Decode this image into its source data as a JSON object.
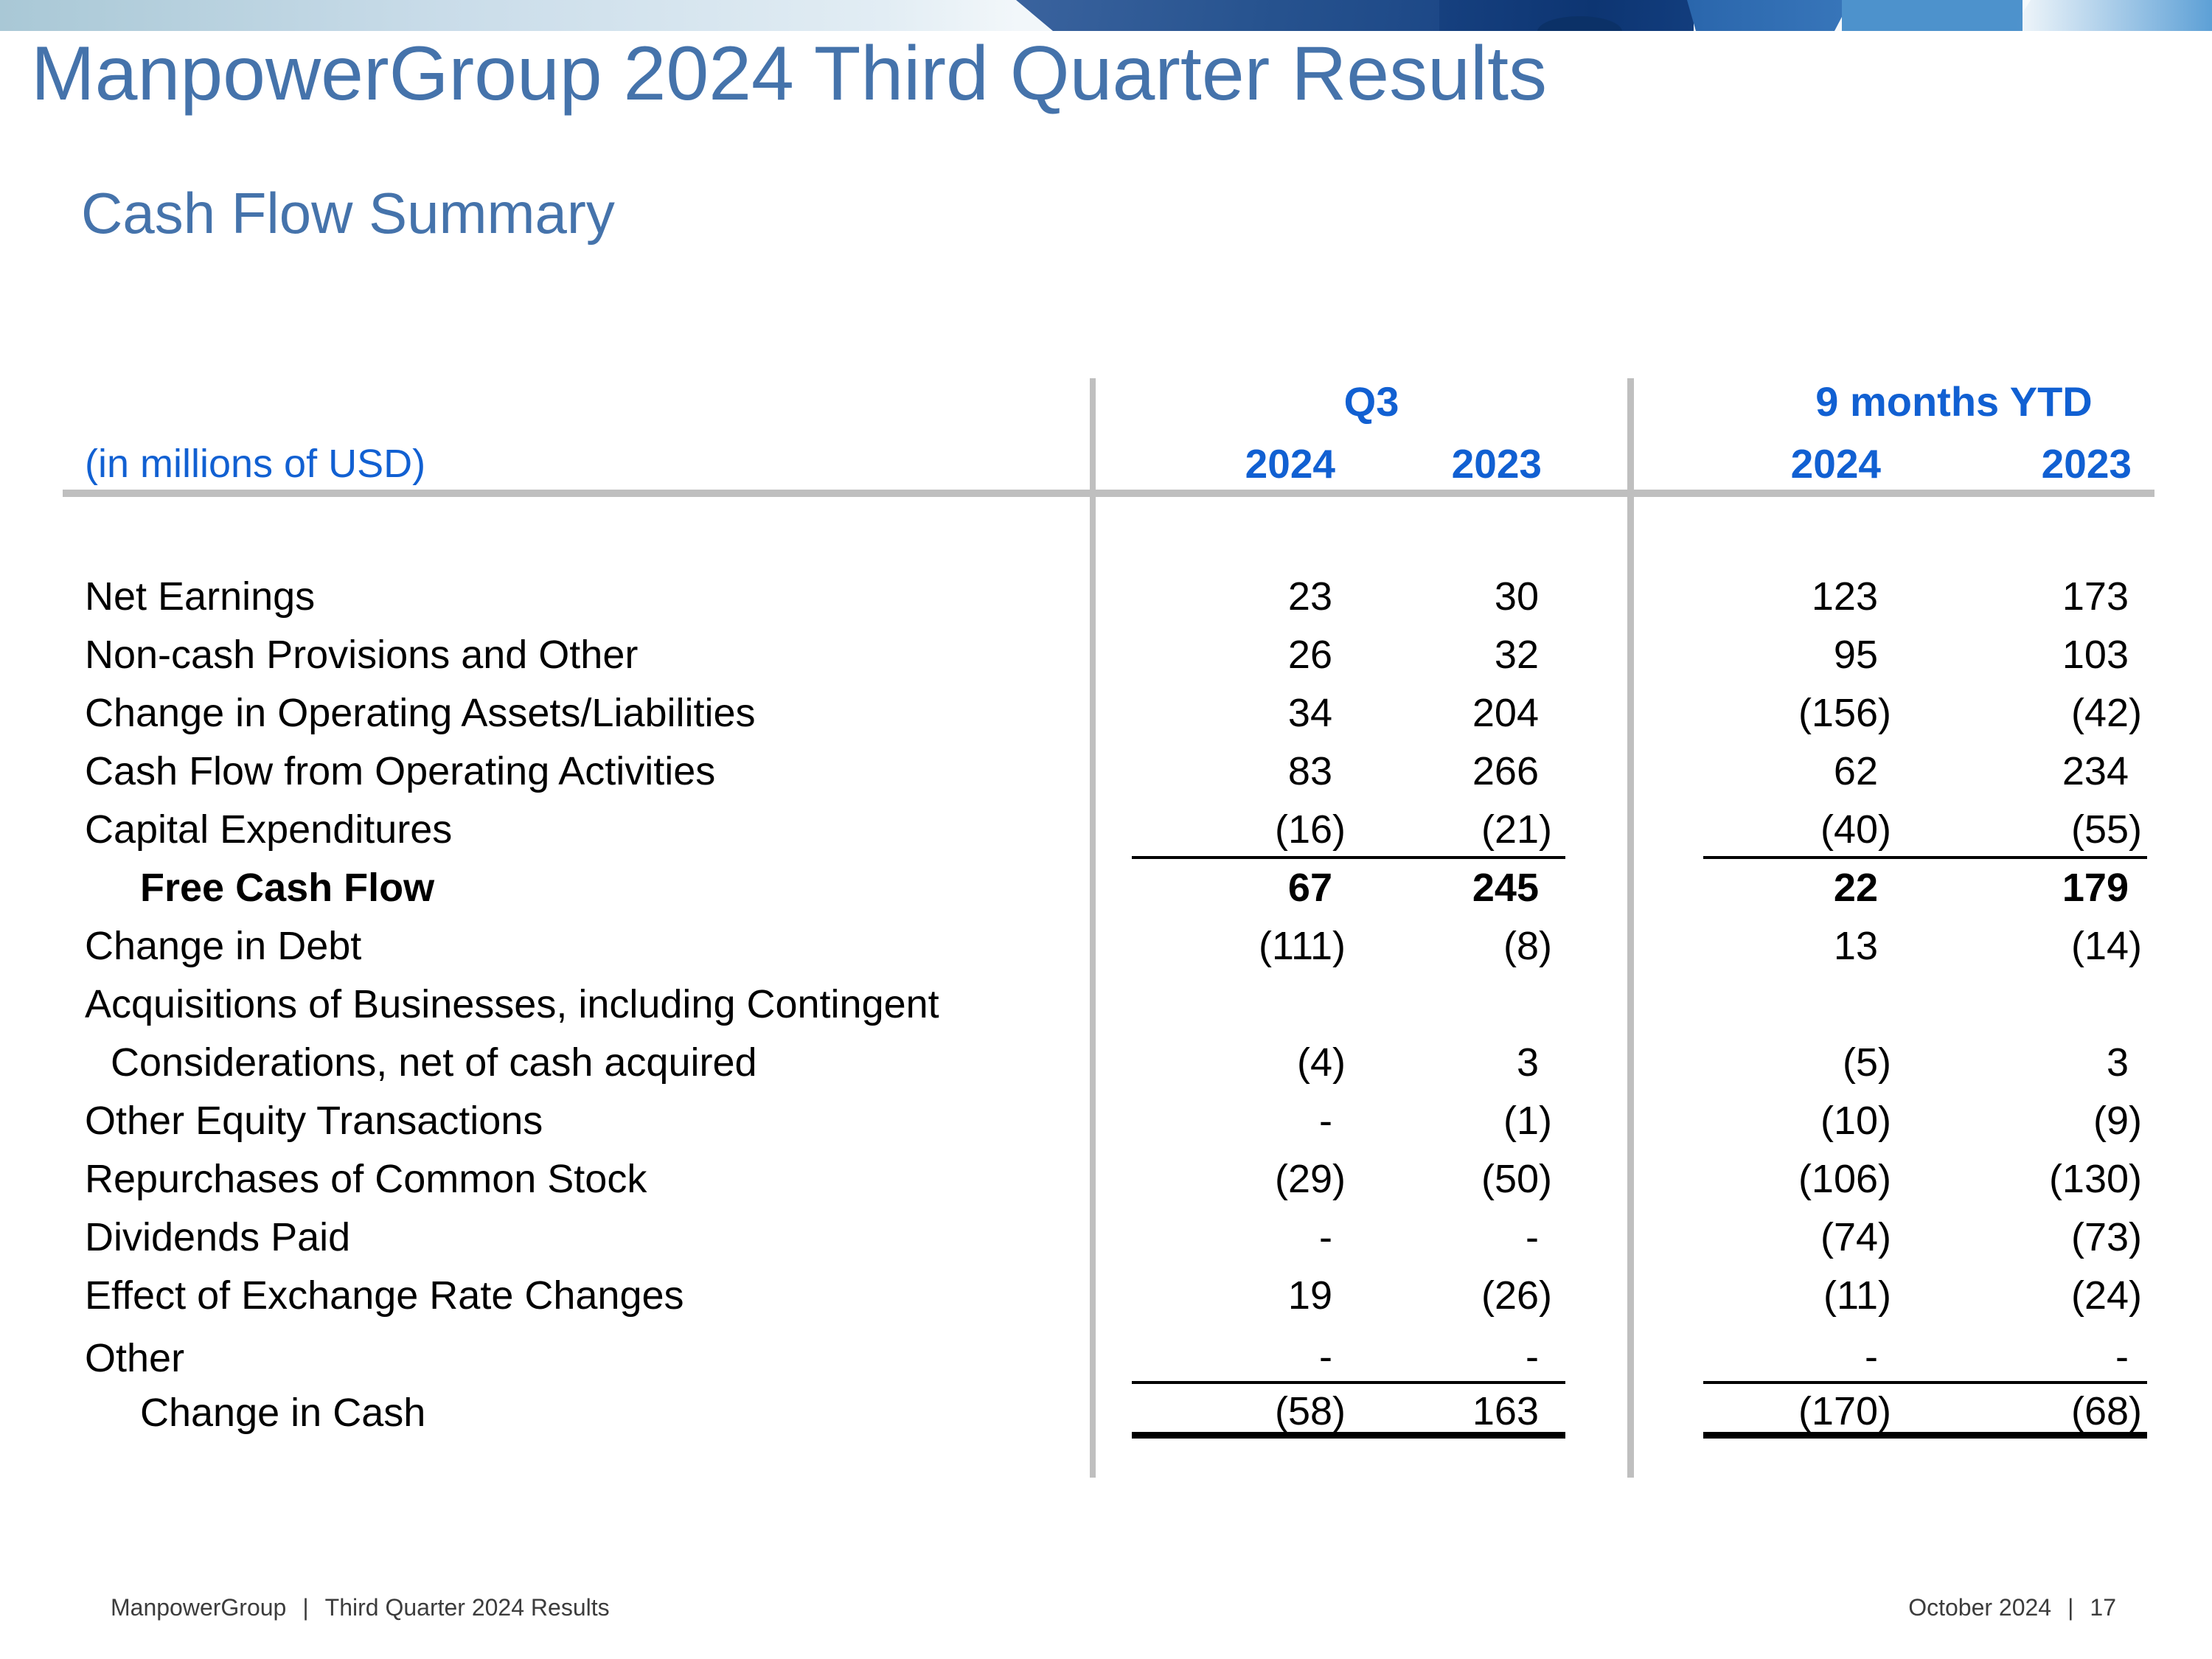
{
  "slide": {
    "title": "ManpowerGroup 2024 Third Quarter Results",
    "subtitle": "Cash Flow Summary"
  },
  "table": {
    "unit_label": "(in millions of USD)",
    "column_groups": [
      {
        "label": "Q3"
      },
      {
        "label": "9 months YTD"
      }
    ],
    "year_headers": [
      "2024",
      "2023",
      "2024",
      "2023"
    ],
    "rows": [
      {
        "label": "Net Earnings",
        "values": [
          "23",
          "30",
          "123",
          "173"
        ]
      },
      {
        "label": "Non-cash Provisions and Other",
        "values": [
          "26",
          "32",
          "95",
          "103"
        ]
      },
      {
        "label": "Change in Operating Assets/Liabilities",
        "values": [
          "34",
          "204",
          "(156)",
          "(42)"
        ]
      },
      {
        "label": "Cash Flow from Operating Activities",
        "values": [
          "83",
          "266",
          "62",
          "234"
        ]
      },
      {
        "label": "Capital Expenditures",
        "values": [
          "(16)",
          "(21)",
          "(40)",
          "(55)"
        ],
        "rule_below": "single"
      },
      {
        "label": "Free Cash Flow",
        "bold": true,
        "indent": true,
        "values": [
          "67",
          "245",
          "22",
          "179"
        ]
      },
      {
        "label": "Change in Debt",
        "values": [
          "(111)",
          "(8)",
          "13",
          "(14)"
        ]
      },
      {
        "label": "Acquisitions of Businesses, including Contingent",
        "label2": "Considerations, net of cash acquired",
        "values": [
          "(4)",
          "3",
          "(5)",
          "3"
        ]
      },
      {
        "label": "Other Equity Transactions",
        "values": [
          "-",
          "(1)",
          "(10)",
          "(9)"
        ]
      },
      {
        "label": "Repurchases of Common Stock",
        "values": [
          "(29)",
          "(50)",
          "(106)",
          "(130)"
        ]
      },
      {
        "label": "Dividends Paid",
        "values": [
          "-",
          "-",
          "(74)",
          "(73)"
        ]
      },
      {
        "label": "Effect of Exchange Rate Changes",
        "values": [
          "19",
          "(26)",
          "(11)",
          "(24)"
        ]
      },
      {
        "label": "Other",
        "values": [
          "-",
          "-",
          "-",
          "-"
        ],
        "rule_below": "single",
        "extra_gap": true,
        "short": true
      },
      {
        "label": "Change in Cash",
        "indent": true,
        "values": [
          "(58)",
          "163",
          "(170)",
          "(68)"
        ],
        "rule_below": "thick",
        "short": true
      }
    ]
  },
  "footer": {
    "brand": "ManpowerGroup",
    "separator": "|",
    "left_text": "Third Quarter 2024 Results",
    "date": "October 2024",
    "page_number": "17"
  },
  "colors": {
    "title_blue": "#4573ab",
    "header_blue": "#1160d2",
    "rule_gray": "#bfbfbf",
    "body_text": "#000000",
    "footer_text": "#3c3c3c"
  }
}
